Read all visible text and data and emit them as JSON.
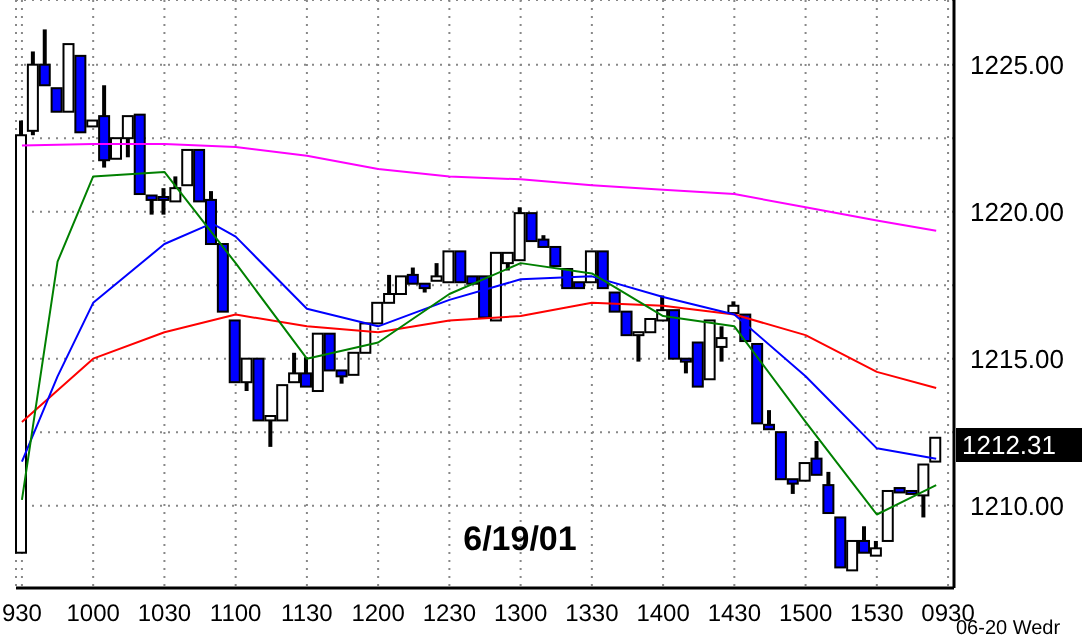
{
  "chart_data": {
    "type": "candlestick",
    "grid": true,
    "colors": [
      "#ffffff",
      "#ffffff",
      "#0000ff",
      "#0000ff",
      "#ffffff",
      "#0000ff",
      "#ffffff",
      "#0000ff",
      "#ffffff",
      "#ffffff",
      "#0000ff",
      "#0000ff",
      "#0000ff",
      "#ffffff",
      "#ffffff",
      "#0000ff",
      "#0000ff",
      "#0000ff",
      "#0000ff",
      "#ffffff",
      "#0000ff",
      "#ffffff",
      "#ffffff",
      "#ffffff",
      "#0000ff",
      "#ffffff",
      "#0000ff",
      "#0000ff",
      "#ffffff",
      "#ffffff",
      "#ffffff",
      "#ffffff",
      "#ffffff",
      "#0000ff",
      "#0000ff",
      "#ffffff",
      "#ffffff",
      "#0000ff",
      "#0000ff",
      "#0000ff",
      "#ffffff",
      "#ffffff",
      "#ffffff",
      "#0000ff",
      "#0000ff",
      "#0000ff",
      "#0000ff",
      "#0000ff",
      "#ffffff",
      "#0000ff",
      "#0000ff",
      "#0000ff",
      "#ffffff",
      "#ffffff",
      "#ffffff",
      "#0000ff",
      "#0000ff",
      "#0000ff",
      "#ffffff",
      "#ffffff",
      "#ffffff",
      "#0000ff",
      "#0000ff",
      "#0000ff",
      "#0000ff",
      "#0000ff",
      "#ffffff",
      "#0000ff",
      "#0000ff",
      "#0000ff",
      "#ffffff",
      "#0000ff",
      "#ffffff",
      "#ffffff",
      "#0000ff",
      "#0000ff",
      "#ffffff",
      "#ffffff",
      null
    ],
    "categories": [
      "930",
      null,
      null,
      null,
      null,
      null,
      "1000",
      null,
      null,
      null,
      null,
      null,
      "1030",
      null,
      null,
      null,
      null,
      null,
      "1100",
      null,
      null,
      null,
      null,
      null,
      "1130",
      null,
      null,
      null,
      null,
      null,
      "1200",
      null,
      null,
      null,
      null,
      null,
      "1230",
      null,
      null,
      null,
      null,
      null,
      "1300",
      null,
      null,
      null,
      null,
      null,
      "1330",
      null,
      null,
      null,
      null,
      null,
      "1400",
      null,
      null,
      null,
      null,
      null,
      "1430",
      null,
      null,
      null,
      null,
      null,
      "1500",
      null,
      null,
      null,
      null,
      null,
      "1530",
      null,
      null,
      null,
      null,
      null,
      "0930"
    ],
    "ohlc": [
      [
        1208.4,
        1223.1,
        1208.4,
        1222.6
      ],
      [
        1222.75,
        1225.45,
        1222.6,
        1225.0
      ],
      [
        1225.0,
        1226.2,
        1224.3,
        1224.3
      ],
      [
        1224.2,
        1224.2,
        1223.3,
        1223.4
      ],
      [
        1223.4,
        1225.7,
        1223.4,
        1225.7
      ],
      [
        1225.3,
        1225.3,
        1222.7,
        1222.7
      ],
      [
        1222.9,
        1223.2,
        1222.8,
        1223.1
      ],
      [
        1223.25,
        1224.3,
        1221.5,
        1221.75
      ],
      [
        1221.8,
        1222.5,
        1221.8,
        1222.5
      ],
      [
        1222.5,
        1223.3,
        1221.85,
        1223.25
      ],
      [
        1223.3,
        1223.4,
        1220.6,
        1220.6
      ],
      [
        1220.55,
        1220.6,
        1219.9,
        1220.4
      ],
      [
        1220.5,
        1220.8,
        1219.9,
        1220.4
      ],
      [
        1220.35,
        1221.2,
        1220.35,
        1220.8
      ],
      [
        1220.9,
        1222.1,
        1220.9,
        1222.1
      ],
      [
        1222.1,
        1222.2,
        1220.35,
        1220.35
      ],
      [
        1220.4,
        1220.7,
        1218.9,
        1218.9
      ],
      [
        1218.9,
        1218.9,
        1216.6,
        1216.6
      ],
      [
        1216.3,
        1216.3,
        1214.2,
        1214.2
      ],
      [
        1214.2,
        1215.0,
        1213.9,
        1215.0
      ],
      [
        1215.0,
        1215.0,
        1212.9,
        1212.9
      ],
      [
        1212.9,
        1213.05,
        1212.0,
        1213.05
      ],
      [
        1212.9,
        1214.1,
        1212.9,
        1214.1
      ],
      [
        1214.2,
        1215.2,
        1214.2,
        1214.5
      ],
      [
        1214.5,
        1215.05,
        1214.05,
        1214.05
      ],
      [
        1213.9,
        1215.85,
        1213.9,
        1215.85
      ],
      [
        1215.85,
        1215.9,
        1214.6,
        1214.6
      ],
      [
        1214.6,
        1214.6,
        1214.15,
        1214.4
      ],
      [
        1214.45,
        1215.2,
        1214.45,
        1215.2
      ],
      [
        1215.2,
        1216.2,
        1215.2,
        1216.2
      ],
      [
        1216.2,
        1216.9,
        1216.2,
        1216.9
      ],
      [
        1216.9,
        1217.85,
        1216.9,
        1217.2
      ],
      [
        1217.2,
        1217.8,
        1217.2,
        1217.8
      ],
      [
        1217.85,
        1218.1,
        1217.55,
        1217.55
      ],
      [
        1217.55,
        1217.6,
        1217.25,
        1217.4
      ],
      [
        1217.65,
        1218.25,
        1217.65,
        1217.8
      ],
      [
        1217.6,
        1218.65,
        1217.6,
        1218.65
      ],
      [
        1218.65,
        1218.65,
        1217.6,
        1217.6
      ],
      [
        1217.8,
        1217.8,
        1217.5,
        1217.55
      ],
      [
        1217.8,
        1217.8,
        1216.4,
        1216.4
      ],
      [
        1216.3,
        1218.6,
        1216.3,
        1218.6
      ],
      [
        1218.25,
        1218.6,
        1218.0,
        1218.6
      ],
      [
        1218.35,
        1220.15,
        1218.35,
        1219.95
      ],
      [
        1219.95,
        1219.95,
        1219.0,
        1219.0
      ],
      [
        1219.05,
        1219.2,
        1218.8,
        1218.8
      ],
      [
        1218.8,
        1218.8,
        1218.15,
        1218.15
      ],
      [
        1218.05,
        1218.05,
        1217.4,
        1217.4
      ],
      [
        1217.6,
        1217.6,
        1217.35,
        1217.4
      ],
      [
        1217.6,
        1218.65,
        1217.6,
        1218.65
      ],
      [
        1218.65,
        1218.65,
        1217.4,
        1217.4
      ],
      [
        1217.25,
        1217.25,
        1216.6,
        1216.6
      ],
      [
        1216.6,
        1216.6,
        1215.8,
        1215.8
      ],
      [
        1215.8,
        1215.9,
        1214.9,
        1215.9
      ],
      [
        1215.9,
        1216.35,
        1215.9,
        1216.35
      ],
      [
        1216.3,
        1217.15,
        1216.3,
        1216.65
      ],
      [
        1216.65,
        1216.65,
        1215.0,
        1215.0
      ],
      [
        1215.0,
        1215.0,
        1214.5,
        1214.9
      ],
      [
        1215.55,
        1215.55,
        1214.05,
        1214.05
      ],
      [
        1214.3,
        1216.3,
        1214.3,
        1216.3
      ],
      [
        1215.4,
        1216.1,
        1214.9,
        1215.7
      ],
      [
        1216.55,
        1216.95,
        1216.5,
        1216.8
      ],
      [
        1216.5,
        1216.6,
        1215.6,
        1215.6
      ],
      [
        1215.5,
        1215.5,
        1212.8,
        1212.8
      ],
      [
        1212.75,
        1213.25,
        1212.6,
        1212.6
      ],
      [
        1212.5,
        1212.5,
        1210.9,
        1210.9
      ],
      [
        1210.9,
        1210.9,
        1210.4,
        1210.75
      ],
      [
        1210.85,
        1211.45,
        1210.85,
        1211.45
      ],
      [
        1211.6,
        1212.2,
        1211.05,
        1211.05
      ],
      [
        1210.7,
        1211.15,
        1209.75,
        1209.75
      ],
      [
        1209.6,
        1209.6,
        1207.9,
        1207.9
      ],
      [
        1207.8,
        1208.8,
        1207.8,
        1208.8
      ],
      [
        1208.8,
        1209.3,
        1208.4,
        1208.4
      ],
      [
        1208.3,
        1208.8,
        1208.3,
        1208.55
      ],
      [
        1208.8,
        1210.5,
        1208.8,
        1210.5
      ],
      [
        1210.6,
        1210.65,
        1210.4,
        1210.45
      ],
      [
        1210.5,
        1210.55,
        1210.35,
        1210.4
      ],
      [
        1210.35,
        1211.4,
        1209.6,
        1211.4
      ],
      [
        1211.5,
        1212.31,
        1211.5,
        1212.31
      ],
      null
    ],
    "series": [
      {
        "type": "line",
        "color": "#ff00ff",
        "values": [
          1222.25,
          null,
          null,
          null,
          null,
          null,
          1222.3,
          null,
          null,
          null,
          null,
          null,
          1222.3,
          null,
          null,
          null,
          null,
          null,
          1222.2,
          null,
          null,
          null,
          null,
          null,
          1221.9,
          null,
          null,
          null,
          null,
          null,
          1221.45,
          null,
          null,
          null,
          null,
          null,
          1221.2,
          null,
          null,
          null,
          null,
          null,
          1221.1,
          null,
          null,
          null,
          null,
          null,
          1220.9,
          null,
          null,
          null,
          null,
          null,
          1220.75,
          null,
          null,
          null,
          null,
          null,
          1220.6,
          null,
          null,
          null,
          null,
          null,
          1220.15,
          null,
          null,
          null,
          null,
          null,
          1219.7,
          null,
          null,
          null,
          null,
          1219.35,
          null
        ]
      },
      {
        "type": "line",
        "color": "#ff0000",
        "values": [
          1212.85,
          null,
          null,
          null,
          null,
          null,
          1215.0,
          null,
          null,
          null,
          null,
          null,
          1215.9,
          null,
          null,
          null,
          null,
          null,
          1216.5,
          null,
          null,
          null,
          null,
          null,
          1216.1,
          null,
          null,
          null,
          null,
          null,
          1215.9,
          null,
          null,
          null,
          null,
          null,
          1216.3,
          null,
          null,
          null,
          null,
          null,
          1216.45,
          null,
          null,
          null,
          null,
          null,
          1216.9,
          null,
          null,
          null,
          null,
          null,
          1216.8,
          null,
          null,
          null,
          null,
          null,
          1216.5,
          null,
          null,
          null,
          null,
          null,
          1215.8,
          null,
          null,
          null,
          null,
          null,
          1214.55,
          null,
          null,
          null,
          null,
          1214.0,
          null
        ]
      },
      {
        "type": "line",
        "color": "#0000ff",
        "values": [
          1211.5,
          null,
          null,
          1214.4,
          null,
          null,
          1216.9,
          null,
          null,
          null,
          null,
          null,
          1218.9,
          null,
          null,
          null,
          1219.6,
          null,
          1219.15,
          null,
          null,
          null,
          null,
          null,
          1216.7,
          null,
          null,
          null,
          null,
          null,
          1216.1,
          null,
          null,
          null,
          null,
          null,
          1217.0,
          null,
          null,
          null,
          null,
          null,
          1217.7,
          null,
          null,
          null,
          null,
          null,
          1217.8,
          null,
          null,
          null,
          null,
          null,
          1217.1,
          null,
          null,
          null,
          null,
          null,
          1216.5,
          null,
          null,
          null,
          null,
          null,
          1214.4,
          null,
          null,
          null,
          null,
          null,
          1211.95,
          null,
          null,
          null,
          null,
          1211.6,
          null
        ]
      },
      {
        "type": "line",
        "color": "#008000",
        "values": [
          1210.2,
          null,
          null,
          1218.3,
          null,
          null,
          1221.2,
          null,
          null,
          null,
          null,
          null,
          1221.35,
          null,
          null,
          null,
          null,
          null,
          1218.25,
          null,
          null,
          null,
          null,
          null,
          1215.0,
          null,
          null,
          null,
          null,
          null,
          1215.55,
          null,
          null,
          null,
          null,
          null,
          1217.2,
          null,
          null,
          null,
          null,
          null,
          1218.25,
          null,
          null,
          null,
          null,
          null,
          1217.9,
          null,
          null,
          null,
          null,
          null,
          1216.45,
          null,
          null,
          null,
          null,
          null,
          1216.1,
          null,
          null,
          null,
          null,
          null,
          1212.85,
          null,
          null,
          null,
          null,
          null,
          1209.7,
          null,
          null,
          null,
          null,
          1210.7,
          null
        ]
      }
    ],
    "ylim": [
      1207.2,
      1227.2
    ],
    "yticks": [
      {
        "value": 1210,
        "label": "1210.00"
      },
      {
        "value": 1212.5,
        "label": null
      },
      {
        "value": 1215,
        "label": "1215.00"
      },
      {
        "value": 1217.5,
        "label": null
      },
      {
        "value": 1220,
        "label": "1220.00"
      },
      {
        "value": 1222.5,
        "label": null
      },
      {
        "value": 1225,
        "label": "1225.00"
      }
    ],
    "annotations": [
      "6/19/01",
      "06-20 Wedr",
      "1212.31"
    ]
  }
}
